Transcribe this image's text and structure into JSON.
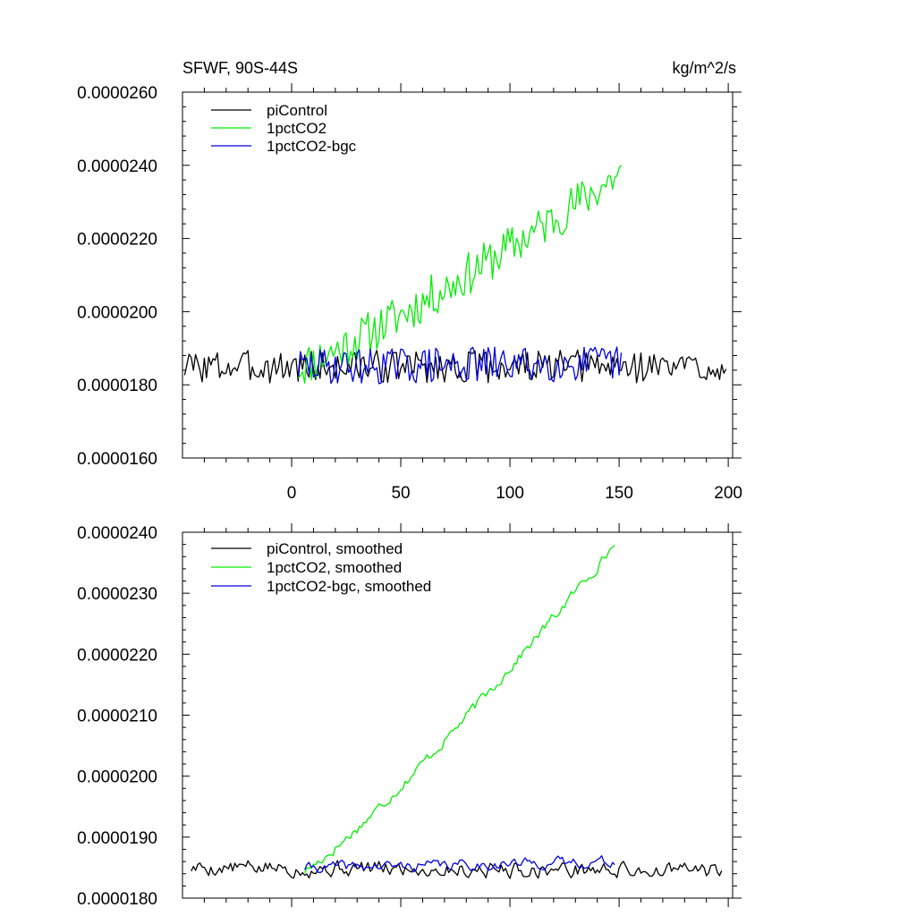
{
  "colors": {
    "piControl": "#000000",
    "1pctCO2": "#00ee00",
    "1pctCO2-bgc": "#0000dd",
    "axis": "#000000",
    "background": "#ffffff"
  },
  "chart_data": [
    {
      "type": "line",
      "title": "SFWF, 90S-44S",
      "units": "kg/m^2/s",
      "xlim": [
        -50,
        202
      ],
      "ylim": [
        1.6e-05,
        2.6e-05
      ],
      "xticks": [
        0,
        50,
        100,
        150,
        200
      ],
      "xtick_labels": [
        "0",
        "50",
        "100",
        "150",
        "200"
      ],
      "yticks": [
        1.6e-05,
        1.8e-05,
        2e-05,
        2.2e-05,
        2.4e-05,
        2.6e-05
      ],
      "ytick_labels": [
        "0.0000160",
        "0.0000180",
        "0.0000200",
        "0.0000220",
        "0.0000240",
        "0.0000260"
      ],
      "legend": "top-left",
      "grid": false,
      "series": [
        {
          "name": "piControl",
          "key": "piControl",
          "x_start": -49,
          "x_end": 199,
          "mean": 1.85e-05,
          "trend_end": 1.85e-05,
          "noise": 4.5e-07,
          "seed": 3
        },
        {
          "name": "1pctCO2",
          "key": "1pctCO2",
          "x_start": 3,
          "x_end": 151,
          "mean": 1.85e-05,
          "trend_end": 2.38e-05,
          "noise": 6e-07,
          "seed": 11
        },
        {
          "name": "1pctCO2-bgc",
          "key": "1pctCO2-bgc",
          "x_start": 3,
          "x_end": 151,
          "mean": 1.85e-05,
          "trend_end": 1.86e-05,
          "noise": 5e-07,
          "seed": 29
        }
      ]
    },
    {
      "type": "line",
      "title": "",
      "units": "",
      "xlim": [
        -50,
        202
      ],
      "ylim": [
        1.8e-05,
        2.4e-05
      ],
      "xticks": [
        0,
        50,
        100,
        150,
        200
      ],
      "xtick_labels": [],
      "yticks": [
        1.8e-05,
        1.9e-05,
        2e-05,
        2.1e-05,
        2.2e-05,
        2.3e-05,
        2.4e-05
      ],
      "ytick_labels": [
        "0.0000180",
        "0.0000190",
        "0.0000200",
        "0.0000210",
        "0.0000220",
        "0.0000230",
        "0.0000240"
      ],
      "legend": "top-left",
      "grid": false,
      "series": [
        {
          "name": "piControl, smoothed",
          "key": "piControl",
          "x_start": -46,
          "x_end": 197,
          "mean": 1.85e-05,
          "trend_end": 1.845e-05,
          "noise": 1.8e-07,
          "seed": 5
        },
        {
          "name": "1pctCO2, smoothed",
          "key": "1pctCO2",
          "x_start": 6,
          "x_end": 148,
          "mean": 1.845e-05,
          "trend_end": 2.38e-05,
          "noise": 1.2e-07,
          "seed": 17
        },
        {
          "name": "1pctCO2-bgc, smoothed",
          "key": "1pctCO2-bgc",
          "x_start": 6,
          "x_end": 148,
          "mean": 1.85e-05,
          "trend_end": 1.86e-05,
          "noise": 1.2e-07,
          "seed": 41
        }
      ]
    }
  ]
}
